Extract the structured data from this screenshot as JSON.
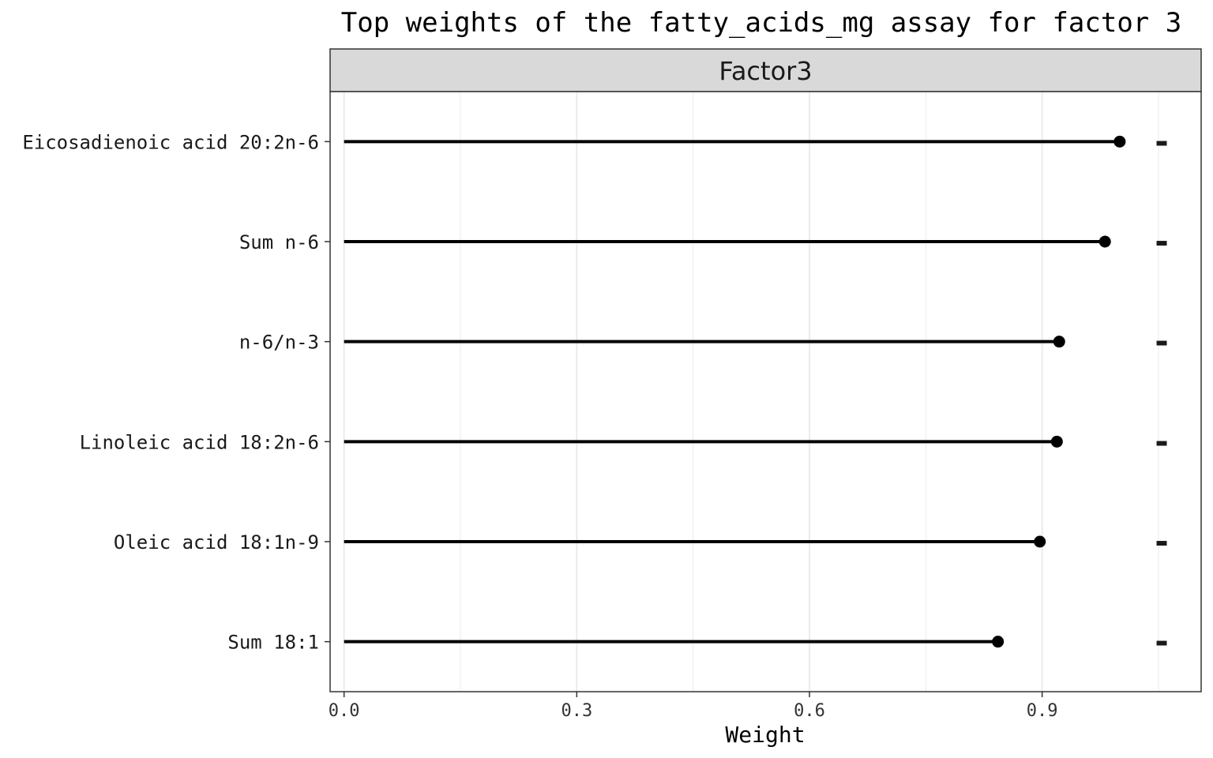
{
  "chart_data": {
    "type": "lollipop",
    "title": "Top weights of the fatty_acids_mg assay for factor 3",
    "facet": "Factor3",
    "xlabel": "Weight",
    "ylabel": "",
    "xlim": [
      -0.018,
      1.105
    ],
    "x_ticks": [
      0.0,
      0.3,
      0.6,
      0.9
    ],
    "x_tick_labels": [
      "0.0",
      "0.3",
      "0.6",
      "0.9"
    ],
    "x_minor_ticks": [
      0.15,
      0.45,
      0.75,
      1.05
    ],
    "grid": true,
    "categories": [
      "Eicosadienoic acid 20:2n-6",
      "Sum n-6",
      "n-6/n-3",
      "Linoleic acid 18:2n-6",
      "Oleic acid 18:1n-9",
      "Sum 18:1"
    ],
    "values": [
      1.0,
      0.981,
      0.922,
      0.919,
      0.897,
      0.843
    ],
    "signs": [
      "-",
      "-",
      "-",
      "-",
      "-",
      "-"
    ],
    "colors": {
      "mark": "#000000",
      "grid": "#ebebeb",
      "strip_bg": "#d9d9d9",
      "frame": "#333333"
    }
  }
}
